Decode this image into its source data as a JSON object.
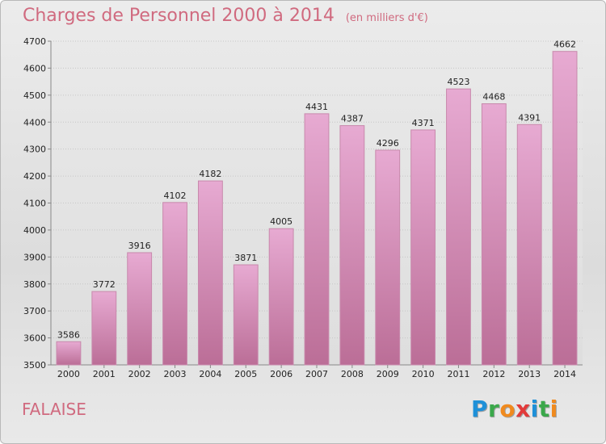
{
  "chart_data": {
    "type": "bar",
    "title": "Charges de Personnel 2000 à 2014",
    "subtitle": "(en milliers d'€)",
    "categories": [
      "2000",
      "2001",
      "2002",
      "2003",
      "2004",
      "2005",
      "2006",
      "2007",
      "2008",
      "2009",
      "2010",
      "2011",
      "2012",
      "2013",
      "2014"
    ],
    "values": [
      3586,
      3772,
      3916,
      4102,
      4182,
      3871,
      4005,
      4431,
      4387,
      4296,
      4371,
      4523,
      4468,
      4391,
      4662
    ],
    "ylim": [
      3500,
      4700
    ],
    "yticks": [
      3500,
      3600,
      3700,
      3800,
      3900,
      4000,
      4100,
      4200,
      4300,
      4400,
      4500,
      4600,
      4700
    ],
    "grid": true,
    "bar_color": "#d890b8"
  },
  "place": "FALAISE",
  "logo": {
    "letters": [
      "P",
      "r",
      "o",
      "x",
      "i",
      "t",
      "i"
    ],
    "colors": [
      "#1e90d8",
      "#3aa84a",
      "#f08a1e",
      "#e23b3b",
      "#1e90d8",
      "#3aa84a",
      "#f08a1e"
    ]
  }
}
